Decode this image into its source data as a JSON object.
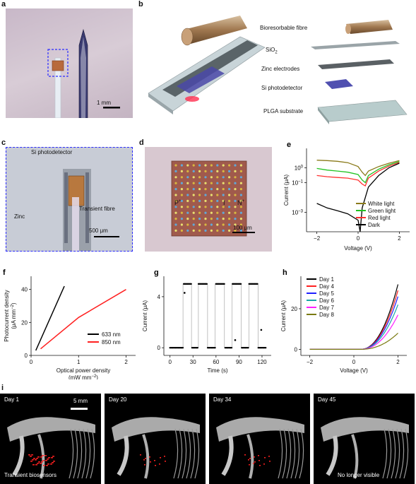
{
  "panels": {
    "a": {
      "label": "a",
      "scalebar": "1 mm"
    },
    "b": {
      "label": "b",
      "layers": [
        "Bioresorbable fibre",
        "SiO",
        "2",
        "Zinc electrodes",
        "Si photodetector",
        "PLGA substrate"
      ]
    },
    "c": {
      "label": "c",
      "labels": [
        "Si photodetector",
        "Zinc",
        "Transient fibre"
      ],
      "scalebar": "500 μm"
    },
    "d": {
      "label": "d",
      "labels": [
        "P",
        "I",
        "N"
      ],
      "n_sup": "+",
      "p_sup": "+",
      "scalebar": "100 μm"
    },
    "i": {
      "label": "i",
      "frames": [
        {
          "day": "Day 1",
          "scalebar": "5 mm",
          "caption": "Transient biosensors"
        },
        {
          "day": "Day 20"
        },
        {
          "day": "Day 34"
        },
        {
          "day": "Day 45",
          "caption": "No longer visible"
        }
      ]
    }
  },
  "chart_data": [
    {
      "id": "e",
      "type": "line",
      "label": "e",
      "xlabel": "Voltage (V)",
      "ylabel": "Current (μA)",
      "xlim": [
        -2.5,
        2.5
      ],
      "ylim_log": [
        -4.3,
        1.3
      ],
      "yscale": "log",
      "xticks": [
        -2,
        0,
        2
      ],
      "xtick_labels": [
        "−2",
        "0",
        "2"
      ],
      "yticks_exp": [
        0,
        -1,
        -3
      ],
      "ytick_base": "10",
      "ytick_exps": [
        "0",
        "−1",
        "−3"
      ],
      "legend": "bottom-right",
      "series": [
        {
          "name": "White light",
          "color": "#8a7a1a",
          "x": [
            -2,
            -1.5,
            -1,
            -0.5,
            0,
            0.2,
            0.35,
            0.5,
            1,
            1.5,
            2
          ],
          "y": [
            3.2,
            3.0,
            2.7,
            2.2,
            1.2,
            0.5,
            0.3,
            0.6,
            1.2,
            2.0,
            3.0
          ]
        },
        {
          "name": "Green light",
          "color": "#22c322",
          "x": [
            -2,
            -1.5,
            -1,
            -0.5,
            0,
            0.2,
            0.35,
            0.5,
            1,
            1.5,
            2
          ],
          "y": [
            0.9,
            0.7,
            0.6,
            0.5,
            0.35,
            0.15,
            0.1,
            0.3,
            0.8,
            1.6,
            2.6
          ]
        },
        {
          "name": "Red light",
          "color": "#ff3030",
          "x": [
            -2,
            -1.5,
            -1,
            -0.5,
            0,
            0.2,
            0.35,
            0.5,
            1,
            1.5,
            2
          ],
          "y": [
            0.3,
            0.25,
            0.22,
            0.2,
            0.15,
            0.08,
            0.06,
            0.2,
            0.6,
            1.3,
            2.3
          ]
        },
        {
          "name": "Dark",
          "color": "#000000",
          "x": [
            -2,
            -1.5,
            -1,
            -0.5,
            0,
            0.1,
            0.2,
            0.5,
            1,
            1.5,
            2
          ],
          "y": [
            0.004,
            0.002,
            0.0013,
            0.0008,
            0.0003,
            5e-05,
            0.002,
            0.05,
            0.3,
            1.0,
            2.0
          ]
        }
      ]
    },
    {
      "id": "f",
      "type": "line",
      "label": "f",
      "xlabel": "Optical power density",
      "xlabel2": "(mW mm",
      "xlabel2_sup": "−2",
      "xlabel2_end": ")",
      "ylabel": "Photocurrent density",
      "ylabel2": "(μA mm",
      "ylabel2_sup": "−2",
      "ylabel2_end": ")",
      "xlim": [
        0,
        2.2
      ],
      "ylim": [
        0,
        48
      ],
      "xticks": [
        0,
        1,
        2
      ],
      "yticks": [
        0,
        20,
        40
      ],
      "legend": "bottom-right",
      "series": [
        {
          "name": "633 nm",
          "color": "#000000",
          "x": [
            0.1,
            0.7
          ],
          "y": [
            3,
            42
          ]
        },
        {
          "name": "850 nm",
          "color": "#ff2020",
          "x": [
            0.2,
            1.0,
            2.0
          ],
          "y": [
            4,
            23,
            40
          ]
        }
      ]
    },
    {
      "id": "g",
      "type": "line",
      "label": "g",
      "xlabel": "Time (s)",
      "ylabel": "Current (μA)",
      "xlim": [
        -8,
        132
      ],
      "ylim": [
        -0.6,
        5.6
      ],
      "xticks": [
        0,
        30,
        60,
        90,
        120
      ],
      "yticks": [
        0,
        4
      ],
      "on_level": 5.0,
      "off_level": 0.0,
      "pulses": [
        [
          17,
          28
        ],
        [
          37,
          49
        ],
        [
          59,
          71
        ],
        [
          81,
          93
        ],
        [
          103,
          115
        ]
      ],
      "x_end": 126,
      "outliers": [
        {
          "x": 19,
          "y": 4.3
        },
        {
          "x": 85,
          "y": 0.6
        },
        {
          "x": 119,
          "y": 1.4
        }
      ]
    },
    {
      "id": "h",
      "type": "line",
      "label": "h",
      "xlabel": "Voltage (V)",
      "ylabel": "Current (μA)",
      "xlim": [
        -2.4,
        2.4
      ],
      "ylim": [
        -3,
        36
      ],
      "xticks": [
        -2,
        0,
        2
      ],
      "yticks": [
        0,
        20
      ],
      "legend": "top-right",
      "series": [
        {
          "name": "Day 1",
          "color": "#000000",
          "vmax": 32
        },
        {
          "name": "Day 4",
          "color": "#ff2020",
          "vmax": 29
        },
        {
          "name": "Day 5",
          "color": "#2020ff",
          "vmax": 26
        },
        {
          "name": "Day 6",
          "color": "#18a8a8",
          "vmax": 22
        },
        {
          "name": "Day 7",
          "color": "#ff20ff",
          "vmax": 17
        },
        {
          "name": "Day 8",
          "color": "#7a7a10",
          "vmax": 8
        }
      ]
    }
  ]
}
